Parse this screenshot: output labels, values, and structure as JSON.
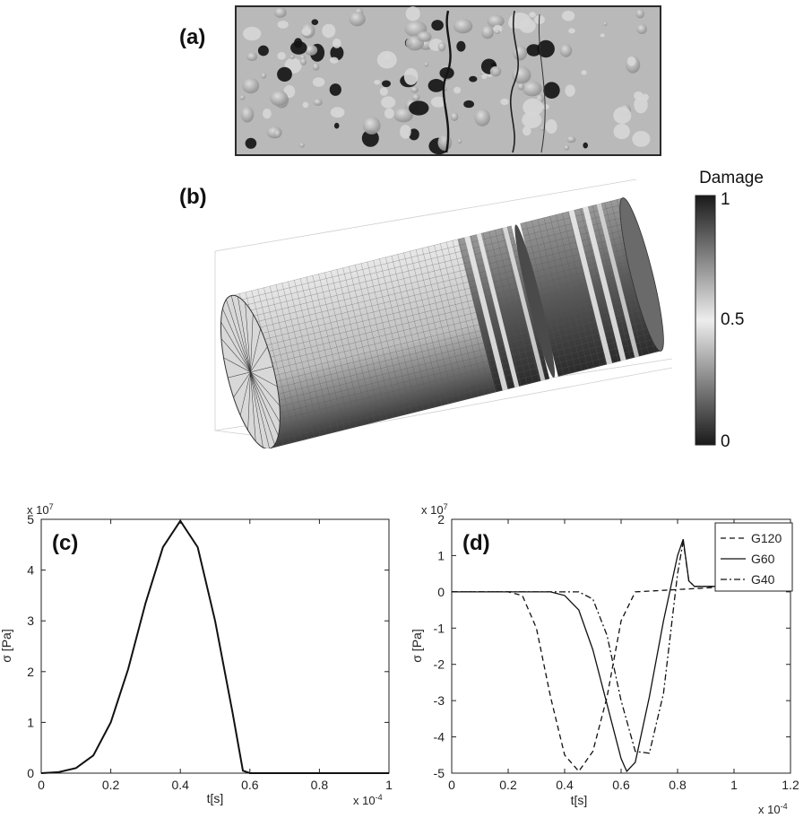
{
  "panels": {
    "a": {
      "label": "(a)"
    },
    "b": {
      "label": "(b)"
    }
  },
  "colorbar": {
    "title": "Damage",
    "ticks": [
      "1",
      "0.5",
      "0"
    ],
    "gradient": [
      "#1a1a1a",
      "#ededed",
      "#1a1a1a"
    ]
  },
  "chart_data": [
    {
      "type": "line",
      "panel": "(c)",
      "title": "",
      "xlabel": "t[s]",
      "ylabel": "σ [Pa]",
      "x_multiplier": "x 10",
      "x_multiplier_exp": "-4",
      "y_multiplier": "x 10",
      "y_multiplier_exp": "7",
      "xlim": [
        0,
        1
      ],
      "ylim": [
        0,
        5
      ],
      "xticks": [
        "0",
        "0.2",
        "0.4",
        "0.6",
        "0.8",
        "1"
      ],
      "yticks": [
        "0",
        "1",
        "2",
        "3",
        "4",
        "5"
      ],
      "grid": false,
      "series": [
        {
          "style": "solid",
          "color": "#111111",
          "x": [
            0,
            0.05,
            0.1,
            0.15,
            0.2,
            0.25,
            0.3,
            0.35,
            0.4,
            0.45,
            0.5,
            0.55,
            0.58,
            0.6,
            1.0
          ],
          "y": [
            0,
            0.02,
            0.1,
            0.35,
            1.0,
            2.05,
            3.35,
            4.45,
            4.97,
            4.45,
            3.0,
            1.2,
            0.05,
            0,
            0
          ]
        }
      ]
    },
    {
      "type": "line",
      "panel": "(d)",
      "title": "",
      "xlabel": "t[s]",
      "ylabel": "σ [Pa]",
      "x_multiplier": "x 10",
      "x_multiplier_exp": "-4",
      "y_multiplier": "x 10",
      "y_multiplier_exp": "7",
      "xlim": [
        0,
        1.2
      ],
      "ylim": [
        -5,
        2
      ],
      "xticks": [
        "0",
        "0.2",
        "0.4",
        "0.6",
        "0.8",
        "1",
        "1.2"
      ],
      "yticks": [
        "2",
        "1",
        "0",
        "-1",
        "-2",
        "-3",
        "-4",
        "-5"
      ],
      "grid": false,
      "legend_position": "top-right",
      "series": [
        {
          "name": "G120",
          "style": "dashed",
          "x": [
            0,
            0.2,
            0.25,
            0.3,
            0.35,
            0.4,
            0.45,
            0.5,
            0.55,
            0.6,
            0.65,
            1.0
          ],
          "y": [
            0,
            0,
            -0.1,
            -1.0,
            -2.9,
            -4.5,
            -4.95,
            -4.4,
            -2.9,
            -0.8,
            0,
            0.15
          ]
        },
        {
          "name": "G60",
          "style": "solid",
          "x": [
            0,
            0.35,
            0.4,
            0.45,
            0.5,
            0.55,
            0.6,
            0.62,
            0.65,
            0.7,
            0.75,
            0.8,
            0.82,
            0.84,
            0.86,
            1.0
          ],
          "y": [
            0,
            0,
            -0.1,
            -0.5,
            -1.6,
            -3.1,
            -4.6,
            -4.95,
            -4.7,
            -2.9,
            -0.8,
            1.0,
            1.45,
            0.3,
            0.15,
            0.15
          ]
        },
        {
          "name": "G40",
          "style": "dashdot",
          "x": [
            0,
            0.45,
            0.5,
            0.55,
            0.6,
            0.65,
            0.7,
            0.75,
            0.8,
            0.82,
            0.84,
            0.86,
            1.0
          ],
          "y": [
            0,
            0,
            -0.2,
            -1.2,
            -3.0,
            -4.4,
            -4.45,
            -2.8,
            0.5,
            1.4,
            0.3,
            0.15,
            0.15
          ]
        }
      ]
    }
  ]
}
